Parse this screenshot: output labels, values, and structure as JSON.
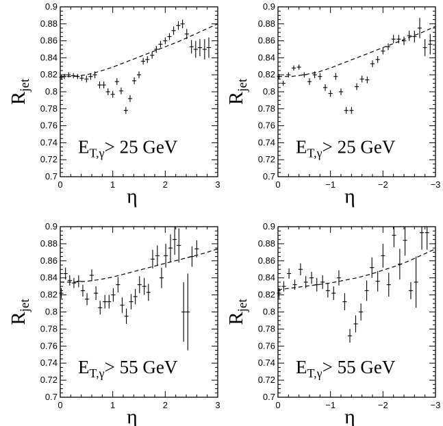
{
  "chart_data": [
    {
      "type": "scatter",
      "panel": "top-left",
      "xlabel": "η",
      "ylabel": "R",
      "ylabel_sub": "jet",
      "xlim": [
        0,
        3
      ],
      "ylim": [
        0.7,
        0.9
      ],
      "xticks": [
        0,
        1,
        2,
        3
      ],
      "xtick_labels": [
        "0",
        "1",
        "2",
        "3"
      ],
      "yticks": [
        0.7,
        0.72,
        0.74,
        0.76,
        0.78,
        0.8,
        0.82,
        0.84,
        0.86,
        0.88,
        0.9
      ],
      "ytick_labels": [
        "0.7",
        "0.72",
        "0.74",
        "0.76",
        "0.78",
        "0.8",
        "0.82",
        "0.84",
        "0.86",
        "0.88",
        "0.9"
      ],
      "annotation": {
        "main": "E",
        "sub": "T,γ",
        "rest": "> 25 GeV"
      },
      "curve": {
        "style": "dashed",
        "x": [
          0,
          0.25,
          0.5,
          0.75,
          1.0,
          1.25,
          1.5,
          1.75,
          2.0,
          2.25,
          2.5,
          2.75,
          3.0
        ],
        "y": [
          0.818,
          0.818,
          0.82,
          0.824,
          0.829,
          0.835,
          0.841,
          0.847,
          0.853,
          0.859,
          0.866,
          0.873,
          0.88
        ]
      },
      "points": [
        {
          "x": 0.02,
          "y": 0.817,
          "err": 0.003
        },
        {
          "x": 0.08,
          "y": 0.818,
          "err": 0.003
        },
        {
          "x": 0.16,
          "y": 0.82,
          "err": 0.003
        },
        {
          "x": 0.25,
          "y": 0.819,
          "err": 0.003
        },
        {
          "x": 0.33,
          "y": 0.818,
          "err": 0.003
        },
        {
          "x": 0.41,
          "y": 0.816,
          "err": 0.003
        },
        {
          "x": 0.5,
          "y": 0.815,
          "err": 0.004
        },
        {
          "x": 0.58,
          "y": 0.818,
          "err": 0.004
        },
        {
          "x": 0.66,
          "y": 0.82,
          "err": 0.004
        },
        {
          "x": 0.75,
          "y": 0.808,
          "err": 0.004
        },
        {
          "x": 0.83,
          "y": 0.808,
          "err": 0.004
        },
        {
          "x": 0.91,
          "y": 0.8,
          "err": 0.004
        },
        {
          "x": 1.0,
          "y": 0.797,
          "err": 0.004
        },
        {
          "x": 1.08,
          "y": 0.812,
          "err": 0.004
        },
        {
          "x": 1.16,
          "y": 0.801,
          "err": 0.004
        },
        {
          "x": 1.25,
          "y": 0.778,
          "err": 0.004
        },
        {
          "x": 1.33,
          "y": 0.792,
          "err": 0.004
        },
        {
          "x": 1.41,
          "y": 0.813,
          "err": 0.004
        },
        {
          "x": 1.5,
          "y": 0.82,
          "err": 0.004
        },
        {
          "x": 1.58,
          "y": 0.836,
          "err": 0.004
        },
        {
          "x": 1.66,
          "y": 0.838,
          "err": 0.004
        },
        {
          "x": 1.75,
          "y": 0.843,
          "err": 0.004
        },
        {
          "x": 1.83,
          "y": 0.85,
          "err": 0.004
        },
        {
          "x": 1.91,
          "y": 0.856,
          "err": 0.004
        },
        {
          "x": 2.0,
          "y": 0.86,
          "err": 0.004
        },
        {
          "x": 2.08,
          "y": 0.865,
          "err": 0.004
        },
        {
          "x": 2.16,
          "y": 0.872,
          "err": 0.005
        },
        {
          "x": 2.25,
          "y": 0.878,
          "err": 0.005
        },
        {
          "x": 2.33,
          "y": 0.88,
          "err": 0.005
        },
        {
          "x": 2.41,
          "y": 0.868,
          "err": 0.006
        },
        {
          "x": 2.5,
          "y": 0.853,
          "err": 0.008
        },
        {
          "x": 2.58,
          "y": 0.85,
          "err": 0.01
        },
        {
          "x": 2.66,
          "y": 0.852,
          "err": 0.01
        },
        {
          "x": 2.75,
          "y": 0.85,
          "err": 0.012
        },
        {
          "x": 2.83,
          "y": 0.852,
          "err": 0.012
        }
      ]
    },
    {
      "type": "scatter",
      "panel": "top-right",
      "xlabel": "η",
      "ylabel": "R",
      "ylabel_sub": "jet",
      "xlim": [
        0,
        -3
      ],
      "ylim": [
        0.7,
        0.9
      ],
      "xticks": [
        0,
        -1,
        -2,
        -3
      ],
      "xtick_labels": [
        "0",
        "−1",
        "−2",
        "−3"
      ],
      "yticks": [
        0.7,
        0.72,
        0.74,
        0.76,
        0.78,
        0.8,
        0.82,
        0.84,
        0.86,
        0.88,
        0.9
      ],
      "ytick_labels": [
        "0.7",
        "0.72",
        "0.74",
        "0.76",
        "0.78",
        "0.8",
        "0.82",
        "0.84",
        "0.86",
        "0.88",
        "0.9"
      ],
      "annotation": {
        "main": "E",
        "sub": "T,γ",
        "rest": "> 25 GeV"
      },
      "curve": {
        "style": "dashed",
        "x": [
          0,
          -0.25,
          -0.5,
          -0.75,
          -1.0,
          -1.25,
          -1.5,
          -1.75,
          -2.0,
          -2.25,
          -2.5,
          -2.75,
          -3.0
        ],
        "y": [
          0.818,
          0.818,
          0.82,
          0.823,
          0.828,
          0.834,
          0.84,
          0.846,
          0.852,
          0.858,
          0.864,
          0.87,
          0.877
        ]
      },
      "points": [
        {
          "x": -0.02,
          "y": 0.818,
          "err": 0.003
        },
        {
          "x": -0.1,
          "y": 0.81,
          "err": 0.003
        },
        {
          "x": -0.2,
          "y": 0.82,
          "err": 0.003
        },
        {
          "x": -0.3,
          "y": 0.828,
          "err": 0.003
        },
        {
          "x": -0.4,
          "y": 0.829,
          "err": 0.003
        },
        {
          "x": -0.5,
          "y": 0.82,
          "err": 0.003
        },
        {
          "x": -0.6,
          "y": 0.812,
          "err": 0.004
        },
        {
          "x": -0.7,
          "y": 0.82,
          "err": 0.004
        },
        {
          "x": -0.8,
          "y": 0.818,
          "err": 0.004
        },
        {
          "x": -0.9,
          "y": 0.805,
          "err": 0.004
        },
        {
          "x": -1.0,
          "y": 0.798,
          "err": 0.004
        },
        {
          "x": -1.1,
          "y": 0.818,
          "err": 0.004
        },
        {
          "x": -1.2,
          "y": 0.8,
          "err": 0.004
        },
        {
          "x": -1.3,
          "y": 0.778,
          "err": 0.004
        },
        {
          "x": -1.4,
          "y": 0.778,
          "err": 0.004
        },
        {
          "x": -1.5,
          "y": 0.806,
          "err": 0.004
        },
        {
          "x": -1.6,
          "y": 0.815,
          "err": 0.004
        },
        {
          "x": -1.7,
          "y": 0.814,
          "err": 0.004
        },
        {
          "x": -1.8,
          "y": 0.833,
          "err": 0.004
        },
        {
          "x": -1.9,
          "y": 0.838,
          "err": 0.004
        },
        {
          "x": -2.0,
          "y": 0.848,
          "err": 0.004
        },
        {
          "x": -2.1,
          "y": 0.853,
          "err": 0.004
        },
        {
          "x": -2.2,
          "y": 0.862,
          "err": 0.005
        },
        {
          "x": -2.3,
          "y": 0.862,
          "err": 0.005
        },
        {
          "x": -2.4,
          "y": 0.86,
          "err": 0.005
        },
        {
          "x": -2.5,
          "y": 0.866,
          "err": 0.006
        },
        {
          "x": -2.6,
          "y": 0.865,
          "err": 0.007
        },
        {
          "x": -2.7,
          "y": 0.875,
          "err": 0.012
        },
        {
          "x": -2.8,
          "y": 0.852,
          "err": 0.01
        },
        {
          "x": -2.9,
          "y": 0.856,
          "err": 0.012
        }
      ]
    },
    {
      "type": "scatter",
      "panel": "bottom-left",
      "xlabel": "η",
      "ylabel": "R",
      "ylabel_sub": "jet",
      "xlim": [
        0,
        3
      ],
      "ylim": [
        0.7,
        0.9
      ],
      "xticks": [
        0,
        1,
        2,
        3
      ],
      "xtick_labels": [
        "0",
        "1",
        "2",
        "3"
      ],
      "yticks": [
        0.7,
        0.72,
        0.74,
        0.76,
        0.78,
        0.8,
        0.82,
        0.84,
        0.86,
        0.88,
        0.9
      ],
      "ytick_labels": [
        "0.7",
        "0.72",
        "0.74",
        "0.76",
        "0.78",
        "0.8",
        "0.82",
        "0.84",
        "0.86",
        "0.88",
        "0.9"
      ],
      "annotation": {
        "main": "E",
        "sub": "T,γ",
        "rest": "> 55 GeV"
      },
      "curve": {
        "style": "dashed",
        "x": [
          0,
          0.25,
          0.5,
          0.75,
          1.0,
          1.25,
          1.5,
          1.75,
          2.0,
          2.25,
          2.5,
          2.75,
          3.0
        ],
        "y": [
          0.835,
          0.835,
          0.836,
          0.838,
          0.841,
          0.845,
          0.849,
          0.853,
          0.857,
          0.861,
          0.865,
          0.869,
          0.874
        ]
      },
      "points": [
        {
          "x": 0.02,
          "y": 0.822,
          "err": 0.006
        },
        {
          "x": 0.1,
          "y": 0.845,
          "err": 0.007
        },
        {
          "x": 0.18,
          "y": 0.837,
          "err": 0.006
        },
        {
          "x": 0.26,
          "y": 0.834,
          "err": 0.006
        },
        {
          "x": 0.35,
          "y": 0.836,
          "err": 0.007
        },
        {
          "x": 0.43,
          "y": 0.825,
          "err": 0.007
        },
        {
          "x": 0.51,
          "y": 0.815,
          "err": 0.007
        },
        {
          "x": 0.6,
          "y": 0.843,
          "err": 0.007
        },
        {
          "x": 0.68,
          "y": 0.822,
          "err": 0.008
        },
        {
          "x": 0.76,
          "y": 0.805,
          "err": 0.008
        },
        {
          "x": 0.85,
          "y": 0.812,
          "err": 0.008
        },
        {
          "x": 0.93,
          "y": 0.812,
          "err": 0.008
        },
        {
          "x": 1.01,
          "y": 0.82,
          "err": 0.008
        },
        {
          "x": 1.1,
          "y": 0.832,
          "err": 0.009
        },
        {
          "x": 1.18,
          "y": 0.808,
          "err": 0.009
        },
        {
          "x": 1.26,
          "y": 0.795,
          "err": 0.009
        },
        {
          "x": 1.35,
          "y": 0.812,
          "err": 0.009
        },
        {
          "x": 1.43,
          "y": 0.818,
          "err": 0.009
        },
        {
          "x": 1.51,
          "y": 0.832,
          "err": 0.01
        },
        {
          "x": 1.6,
          "y": 0.83,
          "err": 0.01
        },
        {
          "x": 1.68,
          "y": 0.823,
          "err": 0.01
        },
        {
          "x": 1.76,
          "y": 0.862,
          "err": 0.011
        },
        {
          "x": 1.85,
          "y": 0.866,
          "err": 0.012
        },
        {
          "x": 1.93,
          "y": 0.84,
          "err": 0.012
        },
        {
          "x": 2.01,
          "y": 0.866,
          "err": 0.014
        },
        {
          "x": 2.1,
          "y": 0.875,
          "err": 0.016
        },
        {
          "x": 2.18,
          "y": 0.885,
          "err": 0.018
        },
        {
          "x": 2.26,
          "y": 0.878,
          "err": 0.02
        },
        {
          "x": 2.35,
          "y": 0.8,
          "err": 0.035
        },
        {
          "x": 2.43,
          "y": 0.8,
          "err": 0.045
        },
        {
          "x": 2.51,
          "y": 0.865,
          "err": 0.012
        },
        {
          "x": 2.6,
          "y": 0.874,
          "err": 0.01
        }
      ]
    },
    {
      "type": "scatter",
      "panel": "bottom-right",
      "xlabel": "η",
      "ylabel": "R",
      "ylabel_sub": "jet",
      "xlim": [
        0,
        -3
      ],
      "ylim": [
        0.7,
        0.9
      ],
      "xticks": [
        0,
        -1,
        -2,
        -3
      ],
      "xtick_labels": [
        "0",
        "−1",
        "−2",
        "−3"
      ],
      "yticks": [
        0.7,
        0.72,
        0.74,
        0.76,
        0.78,
        0.8,
        0.82,
        0.84,
        0.86,
        0.88,
        0.9
      ],
      "ytick_labels": [
        "0.7",
        "0.72",
        "0.74",
        "0.76",
        "0.78",
        "0.8",
        "0.82",
        "0.84",
        "0.86",
        "0.88",
        "0.9"
      ],
      "annotation": {
        "main": "E",
        "sub": "T,γ",
        "rest": "> 55 GeV"
      },
      "curve": {
        "style": "dashed",
        "x": [
          0,
          -0.25,
          -0.5,
          -0.75,
          -1.0,
          -1.25,
          -1.5,
          -1.75,
          -2.0,
          -2.25,
          -2.5,
          -2.75,
          -3.0
        ],
        "y": [
          0.826,
          0.828,
          0.83,
          0.832,
          0.834,
          0.837,
          0.84,
          0.844,
          0.849,
          0.854,
          0.86,
          0.867,
          0.874
        ]
      },
      "points": [
        {
          "x": -0.02,
          "y": 0.822,
          "err": 0.006
        },
        {
          "x": -0.11,
          "y": 0.83,
          "err": 0.006
        },
        {
          "x": -0.21,
          "y": 0.845,
          "err": 0.006
        },
        {
          "x": -0.32,
          "y": 0.832,
          "err": 0.006
        },
        {
          "x": -0.43,
          "y": 0.85,
          "err": 0.007
        },
        {
          "x": -0.53,
          "y": 0.835,
          "err": 0.007
        },
        {
          "x": -0.64,
          "y": 0.84,
          "err": 0.007
        },
        {
          "x": -0.74,
          "y": 0.832,
          "err": 0.008
        },
        {
          "x": -0.85,
          "y": 0.835,
          "err": 0.008
        },
        {
          "x": -0.95,
          "y": 0.825,
          "err": 0.008
        },
        {
          "x": -1.06,
          "y": 0.822,
          "err": 0.008
        },
        {
          "x": -1.16,
          "y": 0.84,
          "err": 0.009
        },
        {
          "x": -1.27,
          "y": 0.812,
          "err": 0.01
        },
        {
          "x": -1.37,
          "y": 0.772,
          "err": 0.008
        },
        {
          "x": -1.48,
          "y": 0.786,
          "err": 0.01
        },
        {
          "x": -1.58,
          "y": 0.8,
          "err": 0.01
        },
        {
          "x": -1.69,
          "y": 0.825,
          "err": 0.012
        },
        {
          "x": -1.79,
          "y": 0.852,
          "err": 0.012
        },
        {
          "x": -1.9,
          "y": 0.836,
          "err": 0.012
        },
        {
          "x": -2.0,
          "y": 0.866,
          "err": 0.014
        },
        {
          "x": -2.11,
          "y": 0.832,
          "err": 0.014
        },
        {
          "x": -2.21,
          "y": 0.89,
          "err": 0.014
        },
        {
          "x": -2.32,
          "y": 0.856,
          "err": 0.018
        },
        {
          "x": -2.42,
          "y": 0.884,
          "err": 0.018
        },
        {
          "x": -2.53,
          "y": 0.825,
          "err": 0.01
        },
        {
          "x": -2.63,
          "y": 0.835,
          "err": 0.03
        },
        {
          "x": -2.74,
          "y": 0.893,
          "err": 0.02
        },
        {
          "x": -2.84,
          "y": 0.893,
          "err": 0.02
        }
      ]
    }
  ]
}
